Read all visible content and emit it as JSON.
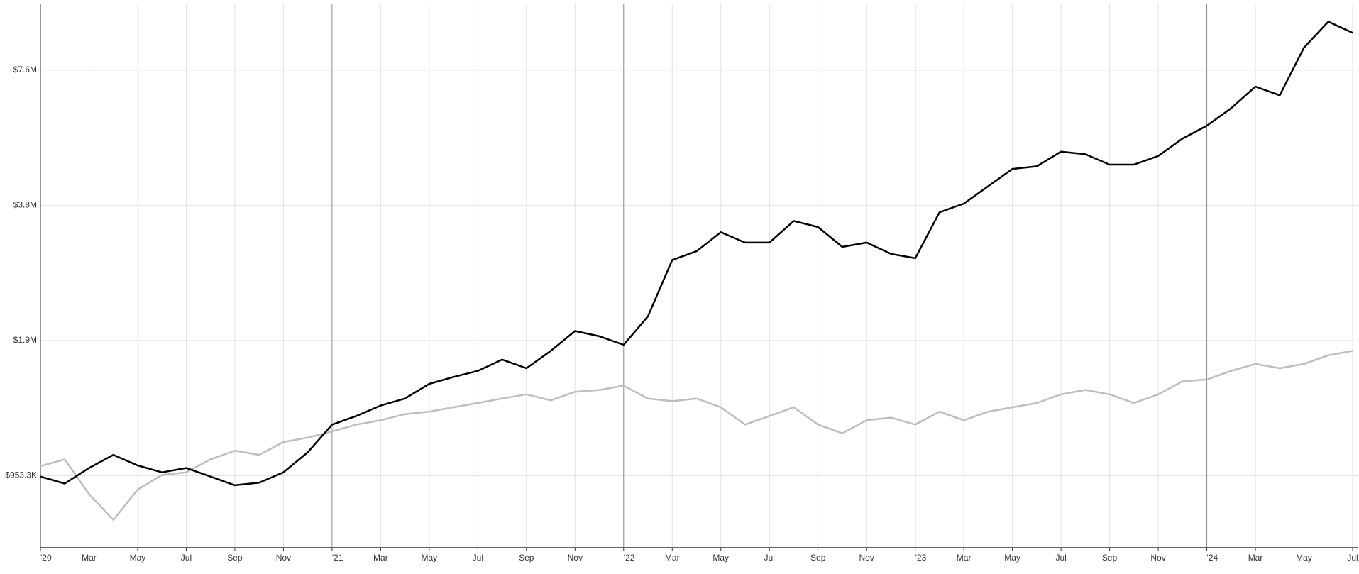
{
  "chart_data": {
    "type": "line",
    "log_scale_y": true,
    "grid": true,
    "x": [
      "2020-01",
      "2020-02",
      "2020-03",
      "2020-04",
      "2020-05",
      "2020-06",
      "2020-07",
      "2020-08",
      "2020-09",
      "2020-10",
      "2020-11",
      "2020-12",
      "2021-01",
      "2021-02",
      "2021-03",
      "2021-04",
      "2021-05",
      "2021-06",
      "2021-07",
      "2021-08",
      "2021-09",
      "2021-10",
      "2021-11",
      "2021-12",
      "2022-01",
      "2022-02",
      "2022-03",
      "2022-04",
      "2022-05",
      "2022-06",
      "2022-07",
      "2022-08",
      "2022-09",
      "2022-10",
      "2022-11",
      "2022-12",
      "2023-01",
      "2023-02",
      "2023-03",
      "2023-04",
      "2023-05",
      "2023-06",
      "2023-07",
      "2023-08",
      "2023-09",
      "2023-10",
      "2023-11",
      "2023-12",
      "2024-01",
      "2024-02",
      "2024-03",
      "2024-04",
      "2024-05",
      "2024-06",
      "2024-07"
    ],
    "series": [
      {
        "color": "#bdbdbd",
        "values": [
          1001000,
          1037000,
          868000,
          760000,
          888000,
          957000,
          970000,
          1037000,
          1084000,
          1061000,
          1133000,
          1159000,
          1196000,
          1239000,
          1267000,
          1307000,
          1324000,
          1354000,
          1384000,
          1416000,
          1447000,
          1403000,
          1466000,
          1480000,
          1513000,
          1416000,
          1397000,
          1416000,
          1354000,
          1239000,
          1295000,
          1354000,
          1239000,
          1185000,
          1267000,
          1284000,
          1239000,
          1324000,
          1267000,
          1324000,
          1354000,
          1384000,
          1447000,
          1480000,
          1447000,
          1384000,
          1447000,
          1547000,
          1561000,
          1632000,
          1691000,
          1654000,
          1691000,
          1768000,
          1808000
        ]
      },
      {
        "color": "#000000",
        "values": [
          949000,
          916000,
          992000,
          1061000,
          1005000,
          970000,
          992000,
          949000,
          908000,
          920000,
          970000,
          1075000,
          1239000,
          1295000,
          1366000,
          1416000,
          1527000,
          1582000,
          1632000,
          1729000,
          1654000,
          1808000,
          2002000,
          1949000,
          1865000,
          2159000,
          2882000,
          3013000,
          3322000,
          3150000,
          3150000,
          3520000,
          3412000,
          3081000,
          3150000,
          2973000,
          2908000,
          3680000,
          3847000,
          4205000,
          4595000,
          4657000,
          5022000,
          4955000,
          4698000,
          4698000,
          4912000,
          5368000,
          5738000,
          6272000,
          7009000,
          6704000,
          8560000,
          9780000,
          9232000
        ]
      }
    ],
    "xlim": [
      "2020-01",
      "2024-07"
    ],
    "xticks": [
      {
        "value": "2020-01",
        "label": "'20"
      },
      {
        "value": "2020-03",
        "label": "Mar"
      },
      {
        "value": "2020-05",
        "label": "May"
      },
      {
        "value": "2020-07",
        "label": "Jul"
      },
      {
        "value": "2020-09",
        "label": "Sep"
      },
      {
        "value": "2020-11",
        "label": "Nov"
      },
      {
        "value": "2021-01",
        "label": "'21"
      },
      {
        "value": "2021-03",
        "label": "Mar"
      },
      {
        "value": "2021-05",
        "label": "May"
      },
      {
        "value": "2021-07",
        "label": "Jul"
      },
      {
        "value": "2021-09",
        "label": "Sep"
      },
      {
        "value": "2021-11",
        "label": "Nov"
      },
      {
        "value": "2022-01",
        "label": "'22"
      },
      {
        "value": "2022-03",
        "label": "Mar"
      },
      {
        "value": "2022-05",
        "label": "May"
      },
      {
        "value": "2022-07",
        "label": "Jul"
      },
      {
        "value": "2022-09",
        "label": "Sep"
      },
      {
        "value": "2022-11",
        "label": "Nov"
      },
      {
        "value": "2023-01",
        "label": "'23"
      },
      {
        "value": "2023-03",
        "label": "Mar"
      },
      {
        "value": "2023-05",
        "label": "May"
      },
      {
        "value": "2023-07",
        "label": "Jul"
      },
      {
        "value": "2023-09",
        "label": "Sep"
      },
      {
        "value": "2023-11",
        "label": "Nov"
      },
      {
        "value": "2024-01",
        "label": "'24"
      },
      {
        "value": "2024-03",
        "label": "Mar"
      },
      {
        "value": "2024-05",
        "label": "May"
      },
      {
        "value": "2024-07",
        "label": "Jul"
      }
    ],
    "ylim": [
      659000,
      10690000
    ],
    "yticks": [
      {
        "value": 953300,
        "label": "$953.3K"
      },
      {
        "value": 1906600,
        "label": "$1.9M"
      },
      {
        "value": 3813200,
        "label": "$3.8M"
      },
      {
        "value": 7626400,
        "label": "$7.6M"
      }
    ]
  }
}
